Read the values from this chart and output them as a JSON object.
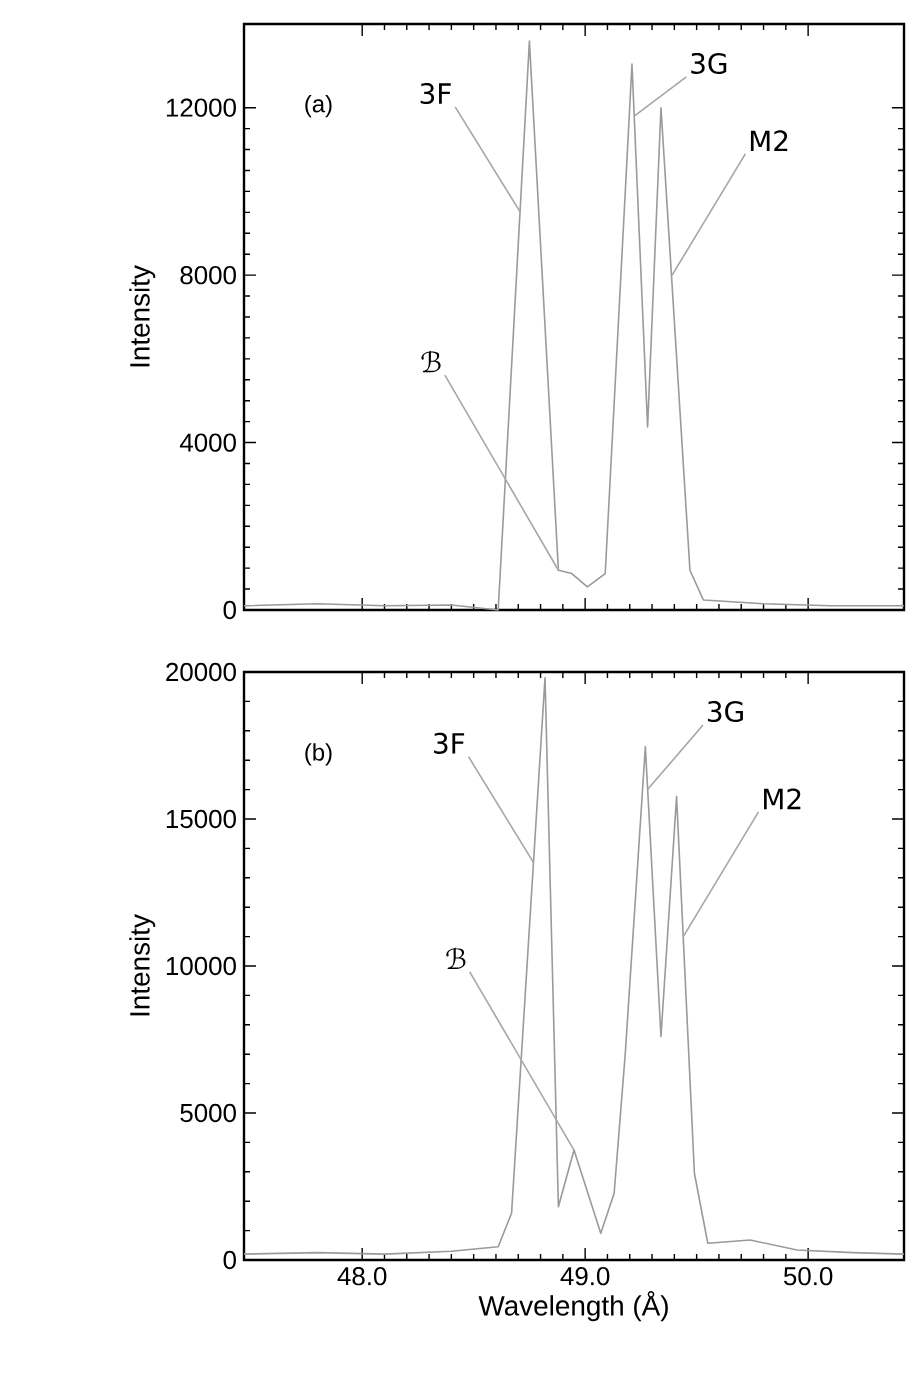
{
  "chart_data": [
    {
      "type": "line",
      "ylabel": "Intensity",
      "xlim": [
        47.47,
        50.43
      ],
      "ylim": [
        0,
        14000
      ],
      "xticks": [
        {
          "value": 48,
          "label": null
        },
        {
          "value": 49,
          "label": null
        },
        {
          "value": 50,
          "label": null
        }
      ],
      "yticks": [
        0,
        4000,
        8000,
        12000
      ],
      "tick_labels": "y",
      "marker": "none",
      "line_style": "solid",
      "series": [
        {
          "color": "#9a9a9a",
          "x": [
            47.47,
            47.8,
            48.1,
            48.4,
            48.61,
            48.75,
            48.88,
            48.94,
            49.01,
            49.09,
            49.21,
            49.28,
            49.34,
            49.47,
            49.53,
            49.8,
            50.1,
            50.43
          ],
          "values": [
            100,
            150,
            100,
            120,
            0,
            13590,
            950,
            870,
            550,
            870,
            13040,
            4370,
            12000,
            950,
            240,
            150,
            100,
            100
          ]
        }
      ],
      "annotations": [
        "(a)",
        {
          "text": "3F",
          "x": 48.71,
          "y": 9500
        },
        {
          "text": "3G",
          "x": 49.22,
          "y": 11800
        },
        {
          "text": "M2",
          "x": 49.39,
          "y": 8000
        },
        {
          "text": "ℬ",
          "x": 48.88,
          "y": 950
        }
      ]
    },
    {
      "type": "line",
      "xlabel": "Wavelength (Å)",
      "ylabel": "Intensity",
      "xlim": [
        47.47,
        50.43
      ],
      "ylim": [
        0,
        20000
      ],
      "xticks": [
        {
          "value": 48,
          "label": "48.0"
        },
        {
          "value": 49,
          "label": "49.0"
        },
        {
          "value": 50,
          "label": "50.0"
        }
      ],
      "yticks": [
        0,
        5000,
        10000,
        15000,
        20000
      ],
      "marker": "none",
      "line_style": "solid",
      "series": [
        {
          "color": "#9a9a9a",
          "x": [
            47.47,
            47.8,
            48.1,
            48.4,
            48.61,
            48.67,
            48.82,
            48.88,
            48.95,
            49.07,
            49.13,
            49.18,
            49.27,
            49.34,
            49.41,
            49.49,
            49.55,
            49.74,
            49.95,
            50.2,
            50.43
          ],
          "values": [
            200,
            250,
            200,
            300,
            450,
            1590,
            19800,
            1810,
            3740,
            910,
            2270,
            7030,
            17460,
            7600,
            15760,
            2950,
            570,
            680,
            340,
            250,
            200
          ]
        }
      ],
      "annotations": [
        "(b)",
        {
          "text": "3F",
          "x": 48.77,
          "y": 13500
        },
        {
          "text": "3G",
          "x": 49.28,
          "y": 16000
        },
        {
          "text": "M2",
          "x": 49.44,
          "y": 11000
        },
        {
          "text": "ℬ",
          "x": 48.95,
          "y": 3740
        }
      ]
    }
  ]
}
